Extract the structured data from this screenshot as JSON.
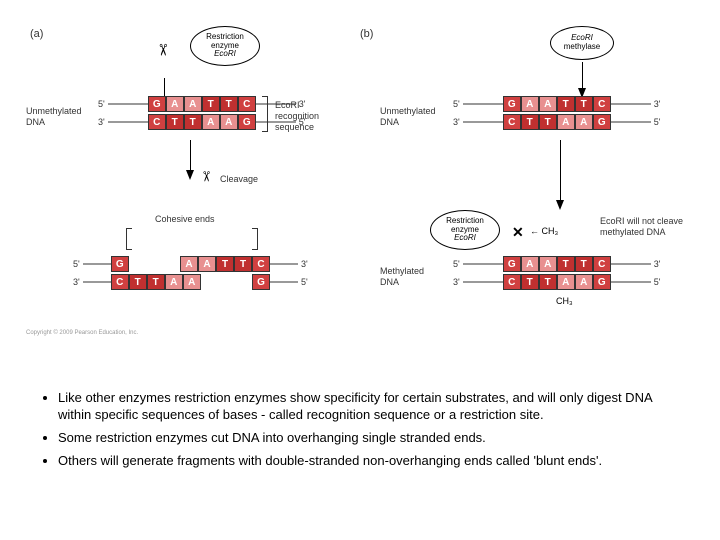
{
  "panels": {
    "a": "(a)",
    "b": "(b)"
  },
  "enzymes": {
    "ecori": {
      "line1": "Restriction",
      "line2": "enzyme",
      "line3": "EcoRI"
    },
    "methylase": {
      "line1": "EcoRI",
      "line2": "methylase"
    }
  },
  "labels": {
    "unmethylated": "Unmethylated\nDNA",
    "recognition": "EcoRI\nrecognition\nsequence",
    "cleavage": "Cleavage",
    "cohesive": "Cohesive ends",
    "methylated": "Methylated\nDNA",
    "noCleave": "EcoRI will not cleave\nmethylated DNA",
    "ch3": "CH₃"
  },
  "bases": {
    "top": [
      "G",
      "A",
      "A",
      "T",
      "T",
      "C"
    ],
    "bottom": [
      "C",
      "T",
      "T",
      "A",
      "A",
      "G"
    ]
  },
  "colors": {
    "G": "#d04040",
    "C": "#d04040",
    "A": "#e89090",
    "T": "#c03030",
    "strand": "#aaaaaa",
    "border": "#333333"
  },
  "ends": {
    "five": "5'",
    "three": "3'"
  },
  "bullets": [
    "Like other enzymes restriction enzymes show specificity for certain substrates, and will only digest DNA within specific sequences of bases  - called recognition sequence or a restriction site.",
    "Some restriction enzymes  cut DNA into overhanging single stranded ends.",
    "Others will generate fragments with double-stranded non-overhanging ends called 'blunt ends'."
  ],
  "copyright": "Copyright © 2009 Pearson Education, Inc."
}
